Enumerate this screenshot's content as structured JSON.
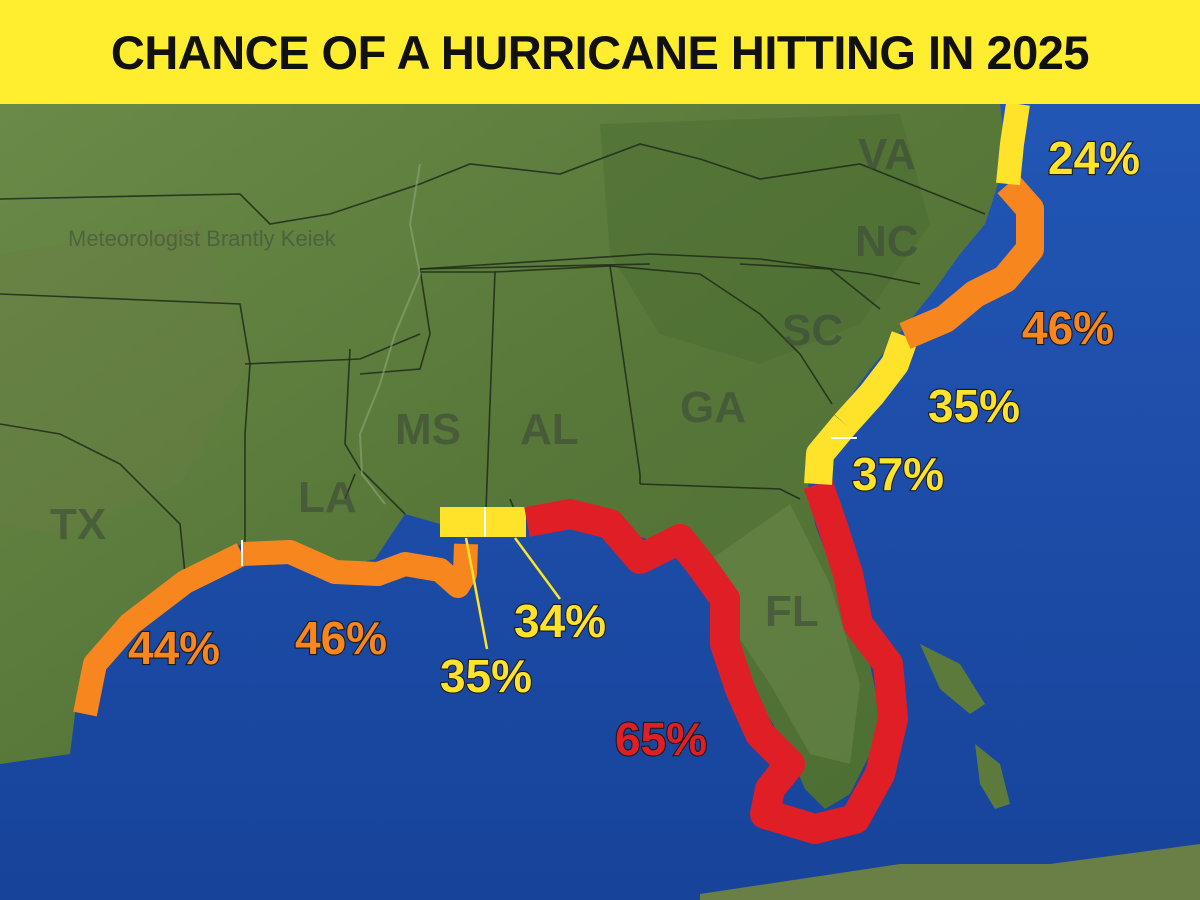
{
  "title": "CHANCE OF A HURRICANE HITTING IN 2025",
  "watermark": "Meteorologist Brantly Keiek",
  "colors": {
    "land": "#5d7c3e",
    "ocean": "#1d4fa8",
    "banner": "#ffee30",
    "low_risk": "#ffe22a",
    "medium_risk": "#f7861f",
    "high_risk": "#e01e26"
  },
  "states": {
    "va": "VA",
    "nc": "NC",
    "sc": "SC",
    "ga": "GA",
    "al": "AL",
    "ms": "MS",
    "la": "LA",
    "tx": "TX",
    "fl": "FL"
  },
  "regions": {
    "va": "24%",
    "nc": "46%",
    "sc": "35%",
    "ga": "37%",
    "fl": "65%",
    "al": "34%",
    "ms": "35%",
    "la": "46%",
    "tx": "44%"
  }
}
